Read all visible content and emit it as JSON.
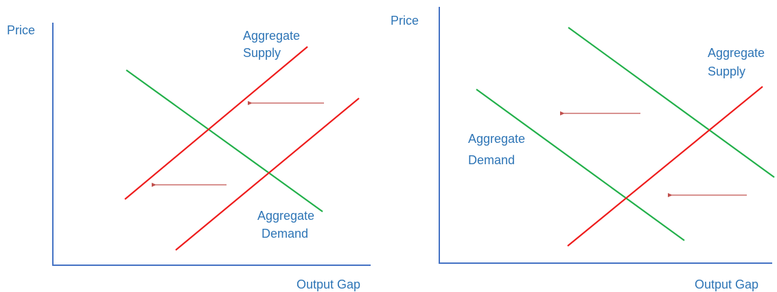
{
  "left_panel": {
    "y_label": "Price",
    "x_label": "Output Gap",
    "supply_label": [
      "Aggregate",
      "Supply"
    ],
    "demand_label": [
      "Aggregate",
      "Demand"
    ]
  },
  "right_panel": {
    "y_label": "Price",
    "x_label": "Output Gap",
    "supply_label": [
      "Aggregate",
      "Supply"
    ],
    "demand_label": [
      "Aggregate",
      "Demand"
    ]
  }
}
